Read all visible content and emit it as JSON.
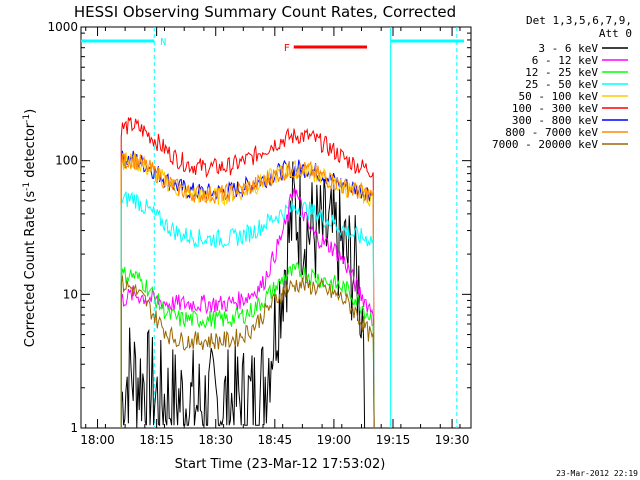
{
  "chart_data": {
    "type": "line",
    "title": "HESSI Observing Summary Count Rates, Corrected",
    "ylabel": "Corrected Count Rate (s",
    "ylabel_sup": "-1",
    "ylabel_tail": " detector",
    "ylabel_sup2": "-1",
    "ylabel_close": ")",
    "xlabel": "Start Time (23-Mar-12 17:53:02)",
    "y_scale": "log",
    "ylim": [
      1,
      1000
    ],
    "xlim_minutes": [
      17.93,
      19.58
    ],
    "x_ticks": [
      {
        "hour": 18.0,
        "label": "18:00"
      },
      {
        "hour": 18.25,
        "label": "18:15"
      },
      {
        "hour": 18.5,
        "label": "18:30"
      },
      {
        "hour": 18.75,
        "label": "18:45"
      },
      {
        "hour": 19.0,
        "label": "19:00"
      },
      {
        "hour": 19.25,
        "label": "19:15"
      },
      {
        "hour": 19.5,
        "label": "19:30"
      }
    ],
    "y_ticks": [
      {
        "value": 1,
        "label": "1"
      },
      {
        "value": 10,
        "label": "10"
      },
      {
        "value": 100,
        "label": "100"
      },
      {
        "value": 1000,
        "label": "1000"
      }
    ],
    "legend": {
      "header": [
        "Det 1,3,5,6,7,9,",
        "Att 0"
      ],
      "placement": "right"
    },
    "series": [
      {
        "name": "3 - 6 keV",
        "color": "#000000",
        "points": [
          [
            18.1,
            1.5
          ],
          [
            18.13,
            2.6
          ],
          [
            18.17,
            2.4
          ],
          [
            18.2,
            2.2
          ],
          [
            18.25,
            1.7
          ],
          [
            18.3,
            1.6
          ],
          [
            18.35,
            1.6
          ],
          [
            18.4,
            1.5
          ],
          [
            18.45,
            1.5
          ],
          [
            18.5,
            1.5
          ],
          [
            18.55,
            1.5
          ],
          [
            18.6,
            1.6
          ],
          [
            18.65,
            1.6
          ],
          [
            18.7,
            2.0
          ],
          [
            18.75,
            6.0
          ],
          [
            18.8,
            20
          ],
          [
            18.83,
            45
          ],
          [
            18.86,
            35
          ],
          [
            18.9,
            30
          ],
          [
            18.95,
            28
          ],
          [
            19.0,
            26
          ],
          [
            19.05,
            20
          ],
          [
            19.1,
            13
          ],
          [
            19.13,
            6
          ]
        ]
      },
      {
        "name": "6 - 12 keV",
        "color": "#ff00ff",
        "points": [
          [
            18.1,
            9
          ],
          [
            18.15,
            10
          ],
          [
            18.2,
            9.5
          ],
          [
            18.25,
            9
          ],
          [
            18.3,
            8.5
          ],
          [
            18.35,
            8.5
          ],
          [
            18.4,
            8.5
          ],
          [
            18.45,
            8.5
          ],
          [
            18.5,
            8.5
          ],
          [
            18.55,
            8.5
          ],
          [
            18.6,
            9
          ],
          [
            18.65,
            10
          ],
          [
            18.7,
            12
          ],
          [
            18.75,
            20
          ],
          [
            18.8,
            35
          ],
          [
            18.83,
            65
          ],
          [
            18.86,
            45
          ],
          [
            18.9,
            30
          ],
          [
            18.95,
            25
          ],
          [
            19.0,
            22
          ],
          [
            19.05,
            17
          ],
          [
            19.1,
            11
          ],
          [
            19.15,
            8
          ],
          [
            19.17,
            7.5
          ]
        ]
      },
      {
        "name": "12 - 25 keV",
        "color": "#00ff00",
        "points": [
          [
            18.1,
            14
          ],
          [
            18.15,
            14
          ],
          [
            18.2,
            12
          ],
          [
            18.25,
            9
          ],
          [
            18.3,
            7
          ],
          [
            18.35,
            6.5
          ],
          [
            18.4,
            6.5
          ],
          [
            18.45,
            6.5
          ],
          [
            18.5,
            6.5
          ],
          [
            18.55,
            6.5
          ],
          [
            18.6,
            6.8
          ],
          [
            18.65,
            7.5
          ],
          [
            18.7,
            9
          ],
          [
            18.75,
            11
          ],
          [
            18.8,
            14
          ],
          [
            18.85,
            15
          ],
          [
            18.9,
            14
          ],
          [
            18.95,
            13
          ],
          [
            19.0,
            12
          ],
          [
            19.05,
            11
          ],
          [
            19.1,
            9
          ],
          [
            19.15,
            7
          ],
          [
            19.17,
            6.5
          ]
        ]
      },
      {
        "name": "25 - 50 keV",
        "color": "#00ffff",
        "points": [
          [
            18.1,
            50
          ],
          [
            18.15,
            53
          ],
          [
            18.2,
            45
          ],
          [
            18.25,
            38
          ],
          [
            18.3,
            32
          ],
          [
            18.35,
            28
          ],
          [
            18.4,
            27
          ],
          [
            18.45,
            26
          ],
          [
            18.5,
            26
          ],
          [
            18.55,
            26
          ],
          [
            18.6,
            27
          ],
          [
            18.65,
            29
          ],
          [
            18.7,
            33
          ],
          [
            18.75,
            38
          ],
          [
            18.8,
            42
          ],
          [
            18.85,
            45
          ],
          [
            18.9,
            42
          ],
          [
            18.95,
            38
          ],
          [
            19.0,
            34
          ],
          [
            19.05,
            30
          ],
          [
            19.1,
            27
          ],
          [
            19.15,
            26
          ],
          [
            19.17,
            25.5
          ]
        ]
      },
      {
        "name": "50 - 100 keV",
        "color": "#ffcc00",
        "points": [
          [
            18.1,
            100
          ],
          [
            18.15,
            100
          ],
          [
            18.2,
            90
          ],
          [
            18.25,
            80
          ],
          [
            18.3,
            68
          ],
          [
            18.35,
            60
          ],
          [
            18.4,
            56
          ],
          [
            18.45,
            54
          ],
          [
            18.5,
            54
          ],
          [
            18.55,
            55
          ],
          [
            18.6,
            58
          ],
          [
            18.65,
            62
          ],
          [
            18.7,
            70
          ],
          [
            18.75,
            78
          ],
          [
            18.8,
            84
          ],
          [
            18.85,
            86
          ],
          [
            18.9,
            83
          ],
          [
            18.95,
            76
          ],
          [
            19.0,
            68
          ],
          [
            19.05,
            62
          ],
          [
            19.1,
            58
          ],
          [
            19.15,
            54
          ],
          [
            19.17,
            50
          ]
        ]
      },
      {
        "name": "100 - 300 keV",
        "color": "#ff0000",
        "points": [
          [
            18.1,
            175
          ],
          [
            18.15,
            185
          ],
          [
            18.2,
            165
          ],
          [
            18.25,
            140
          ],
          [
            18.3,
            115
          ],
          [
            18.35,
            100
          ],
          [
            18.4,
            92
          ],
          [
            18.45,
            89
          ],
          [
            18.5,
            89
          ],
          [
            18.55,
            90
          ],
          [
            18.6,
            96
          ],
          [
            18.65,
            105
          ],
          [
            18.7,
            120
          ],
          [
            18.75,
            135
          ],
          [
            18.8,
            148
          ],
          [
            18.85,
            155
          ],
          [
            18.9,
            150
          ],
          [
            18.95,
            135
          ],
          [
            19.0,
            118
          ],
          [
            19.05,
            102
          ],
          [
            19.1,
            92
          ],
          [
            19.15,
            86
          ],
          [
            19.17,
            84
          ]
        ]
      },
      {
        "name": "300 - 800 keV",
        "color": "#0000ff",
        "points": [
          [
            18.1,
            102
          ],
          [
            18.15,
            104
          ],
          [
            18.2,
            94
          ],
          [
            18.25,
            82
          ],
          [
            18.3,
            70
          ],
          [
            18.35,
            63
          ],
          [
            18.4,
            59
          ],
          [
            18.45,
            58
          ],
          [
            18.5,
            58
          ],
          [
            18.55,
            59
          ],
          [
            18.6,
            62
          ],
          [
            18.65,
            66
          ],
          [
            18.7,
            72
          ],
          [
            18.75,
            80
          ],
          [
            18.8,
            86
          ],
          [
            18.85,
            88
          ],
          [
            18.9,
            86
          ],
          [
            18.95,
            79
          ],
          [
            19.0,
            71
          ],
          [
            19.05,
            65
          ],
          [
            19.1,
            61
          ],
          [
            19.15,
            58
          ],
          [
            19.17,
            56
          ]
        ]
      },
      {
        "name": "800 - 7000 keV",
        "color": "#ff8800",
        "points": [
          [
            18.1,
            98
          ],
          [
            18.15,
            102
          ],
          [
            18.2,
            92
          ],
          [
            18.25,
            80
          ],
          [
            18.3,
            68
          ],
          [
            18.35,
            61
          ],
          [
            18.4,
            57
          ],
          [
            18.45,
            56
          ],
          [
            18.5,
            56
          ],
          [
            18.55,
            57
          ],
          [
            18.6,
            60
          ],
          [
            18.65,
            64
          ],
          [
            18.7,
            70
          ],
          [
            18.75,
            78
          ],
          [
            18.8,
            84
          ],
          [
            18.85,
            86
          ],
          [
            18.9,
            84
          ],
          [
            18.95,
            77
          ],
          [
            19.0,
            69
          ],
          [
            19.05,
            63
          ],
          [
            19.1,
            59
          ],
          [
            19.15,
            56
          ],
          [
            19.17,
            52
          ]
        ]
      },
      {
        "name": "7000 - 20000 keV",
        "color": "#996600",
        "points": [
          [
            18.1,
            12
          ],
          [
            18.15,
            11
          ],
          [
            18.2,
            9
          ],
          [
            18.25,
            6.5
          ],
          [
            18.3,
            5
          ],
          [
            18.35,
            4.5
          ],
          [
            18.4,
            4.5
          ],
          [
            18.45,
            4.5
          ],
          [
            18.5,
            4.5
          ],
          [
            18.55,
            4.5
          ],
          [
            18.6,
            4.8
          ],
          [
            18.65,
            5.5
          ],
          [
            18.7,
            7
          ],
          [
            18.75,
            9
          ],
          [
            18.8,
            11
          ],
          [
            18.85,
            12
          ],
          [
            18.9,
            11.5
          ],
          [
            18.95,
            11
          ],
          [
            19.0,
            10
          ],
          [
            19.05,
            9
          ],
          [
            19.1,
            7
          ],
          [
            19.15,
            5
          ],
          [
            19.17,
            4.5
          ]
        ]
      }
    ],
    "annotations": [
      {
        "label": "N",
        "color": "#00ffff"
      },
      {
        "label": "F",
        "color": "#ff0000"
      }
    ],
    "timestamp": "23-Mar-2012 22:19"
  }
}
